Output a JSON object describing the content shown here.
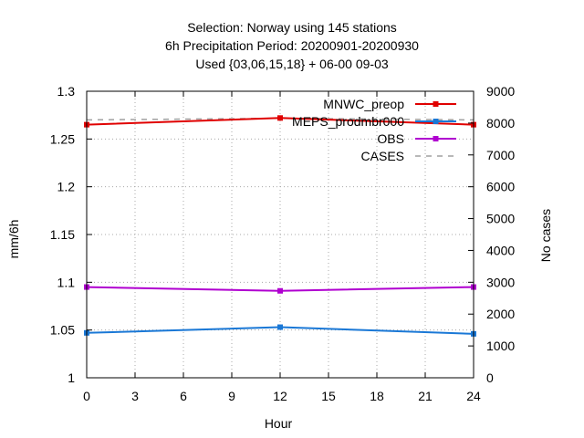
{
  "chart_data": {
    "type": "line",
    "title_lines": [
      "Selection: Norway using   145 stations",
      "6h Precipitation    Period: 20200901-20200930",
      "Used {03,06,15,18} + 06-00 09-03"
    ],
    "xlabel": "Hour",
    "ylabel": "mm/6h",
    "y2label": "No cases",
    "xlim": [
      0,
      24
    ],
    "ylim": [
      1,
      1.3
    ],
    "y2lim": [
      0,
      9000
    ],
    "x_ticks": [
      "0",
      "3",
      "6",
      "9",
      "12",
      "15",
      "18",
      "21",
      "24"
    ],
    "y_ticks": [
      "1",
      "1.05",
      "1.1",
      "1.15",
      "1.2",
      "1.25",
      "1.3"
    ],
    "y2_ticks": [
      "0",
      "1000",
      "2000",
      "3000",
      "4000",
      "5000",
      "6000",
      "7000",
      "8000",
      "9000"
    ],
    "grid": true,
    "legend_position": "top-right",
    "x": [
      0,
      12,
      24
    ],
    "series": [
      {
        "name": "MNWC_preop",
        "color": "#e00000",
        "values": [
          1.265,
          1.272,
          1.265
        ]
      },
      {
        "name": "MEPS_prodmbr000",
        "color": "#1a78d6",
        "values": [
          1.047,
          1.053,
          1.046
        ]
      },
      {
        "name": "OBS",
        "color": "#b000d0",
        "values": [
          1.095,
          1.091,
          1.095
        ]
      }
    ],
    "cases": {
      "name": "CASES",
      "color": "#a0a0a0",
      "values": [
        8100,
        8150,
        8100
      ],
      "axis": "right"
    }
  }
}
